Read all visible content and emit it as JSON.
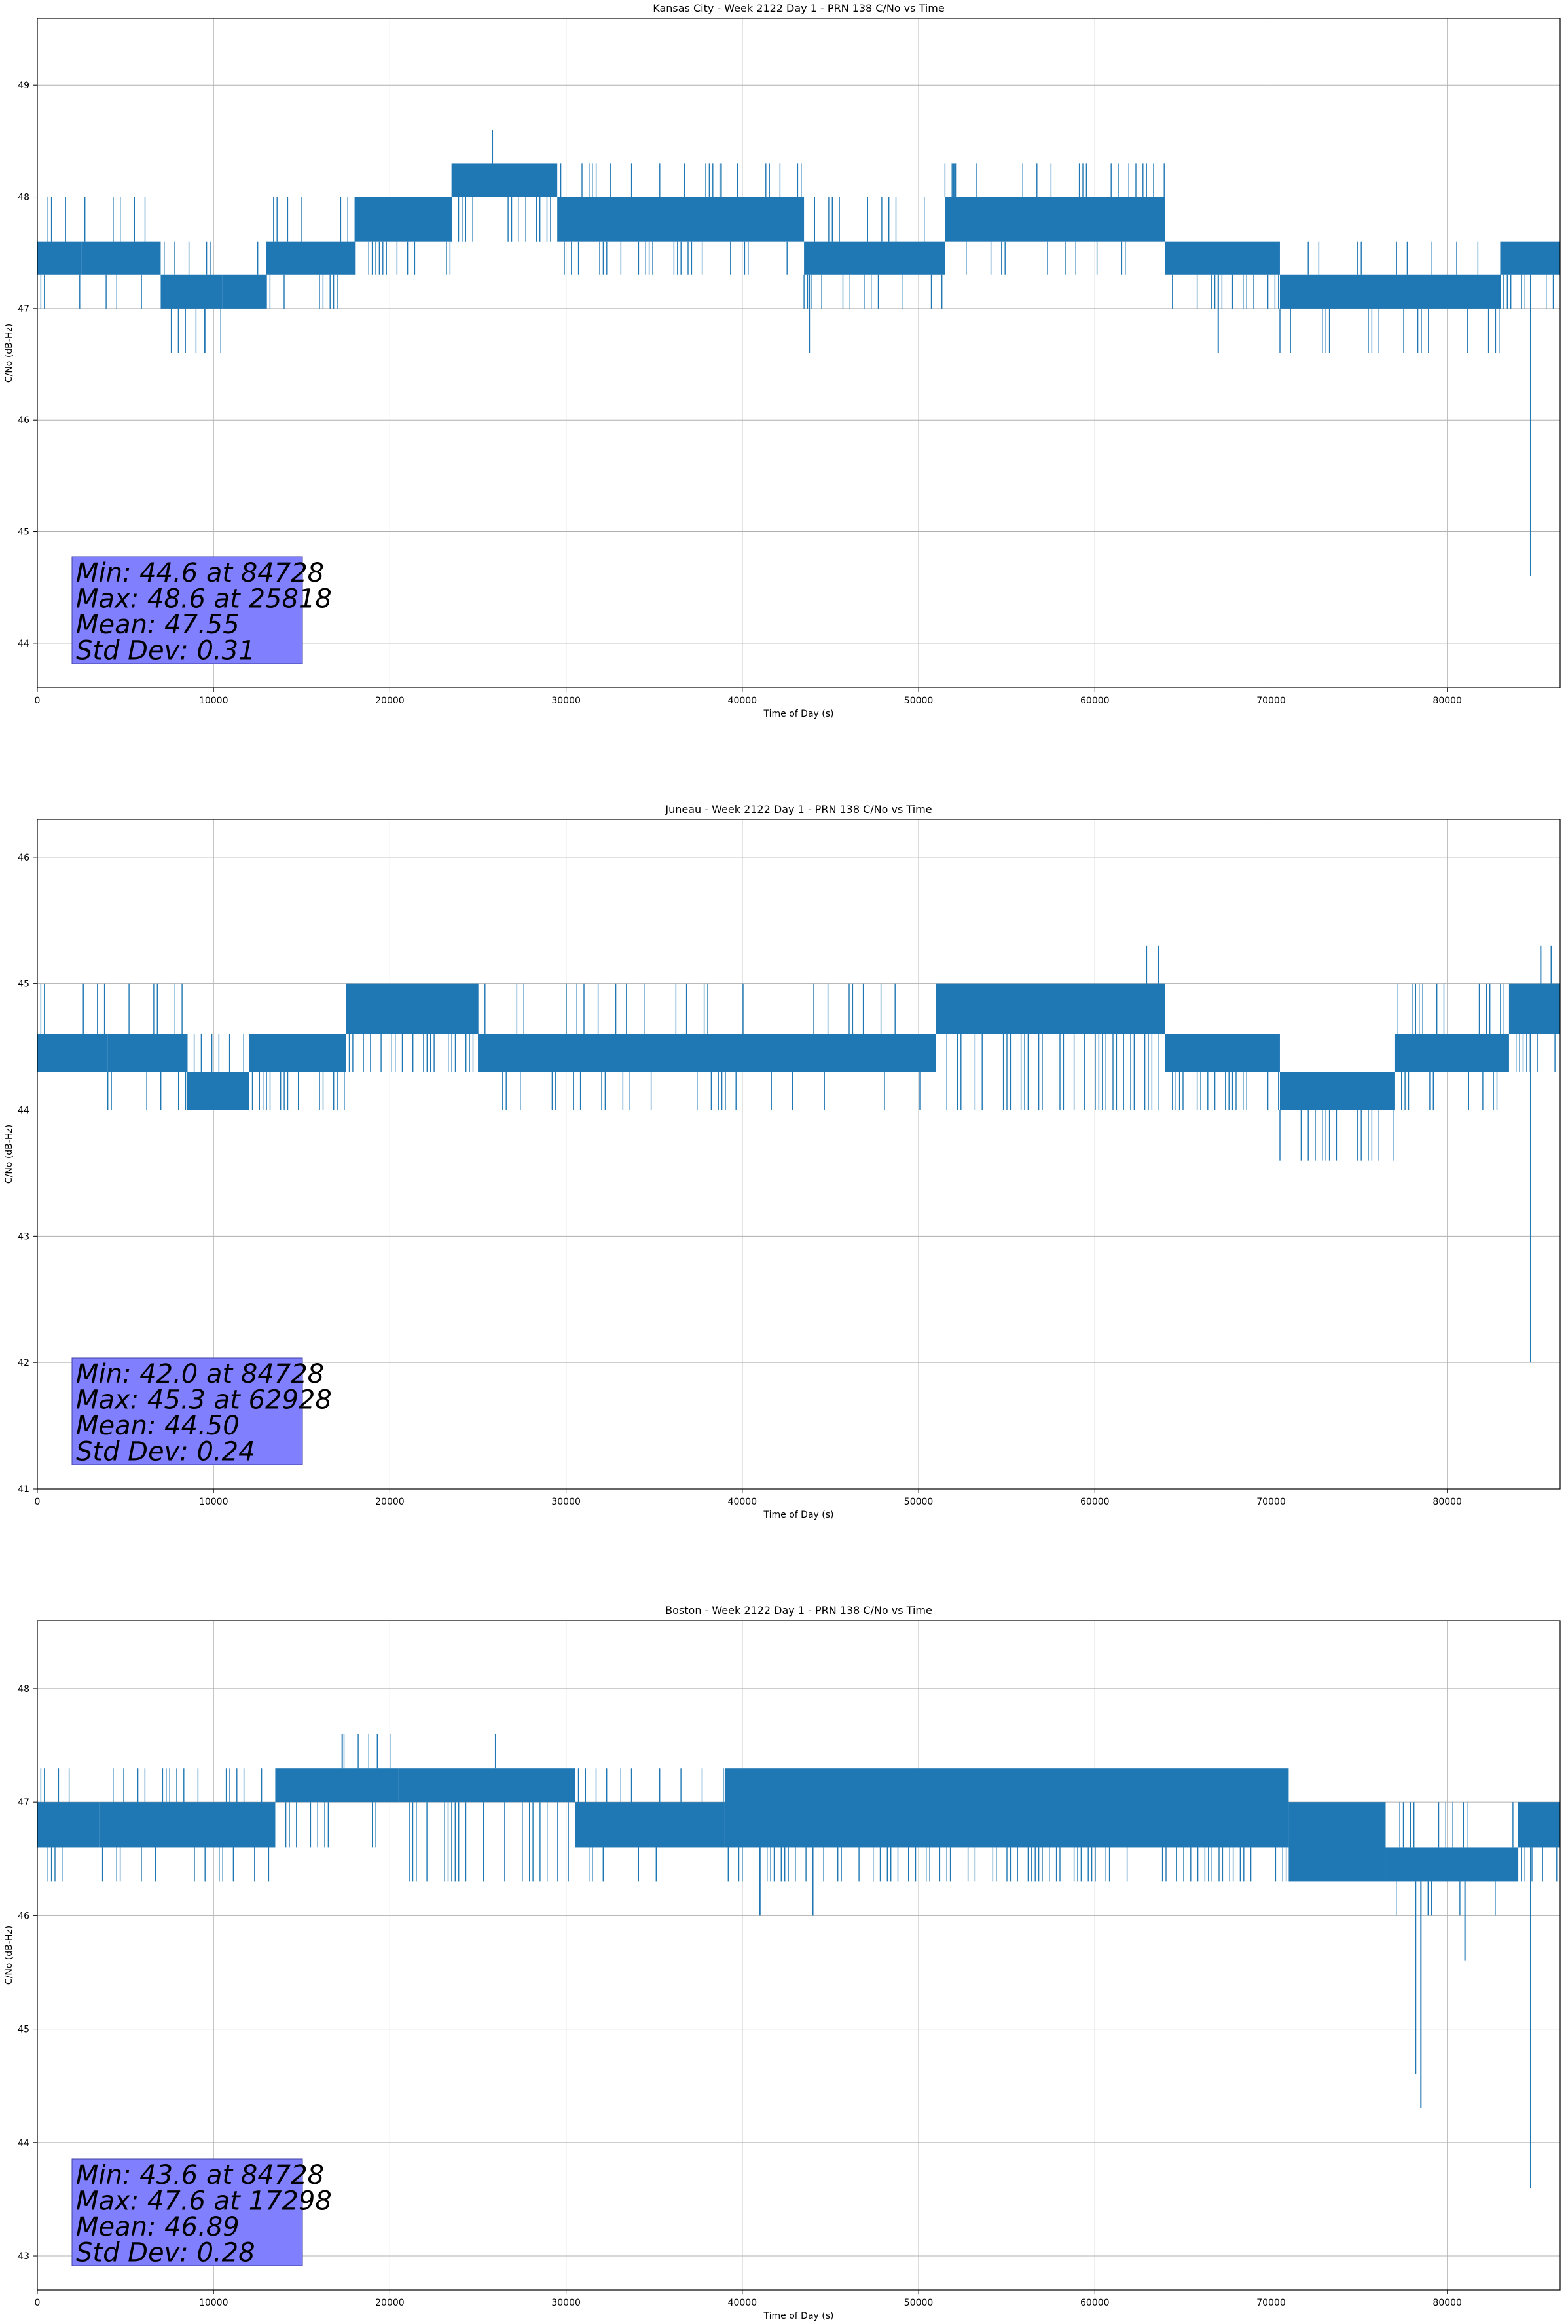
{
  "chart_data": [
    {
      "type": "line",
      "title": "Kansas City - Week 2122 Day 1 - PRN 138 C/No vs Time",
      "xlabel": "Time of Day (s)",
      "ylabel": "C/No (dB-Hz)",
      "xlim": [
        0,
        86400
      ],
      "ylim": [
        43.6,
        49.6
      ],
      "xticks": [
        0,
        10000,
        20000,
        30000,
        40000,
        50000,
        60000,
        70000,
        80000
      ],
      "yticks": [
        44,
        45,
        46,
        47,
        48,
        49
      ],
      "grid": true,
      "color": "#1f77b4",
      "stats": [
        "Min: 44.6 at 84728",
        "Max: 48.6 at 25818",
        "Mean: 47.55",
        "Std Dev: 0.31"
      ],
      "bands": [
        {
          "x": [
            0,
            2500
          ],
          "y": [
            47.3,
            47.6
          ],
          "flick": [
            47.0,
            48.0
          ]
        },
        {
          "x": [
            2500,
            7000
          ],
          "y": [
            47.3,
            47.6
          ],
          "flick": [
            47.0,
            48.0
          ]
        },
        {
          "x": [
            7000,
            10500
          ],
          "y": [
            47.0,
            47.3
          ],
          "flick": [
            46.6,
            47.6
          ]
        },
        {
          "x": [
            10500,
            13000
          ],
          "y": [
            47.0,
            47.3
          ],
          "flick": [
            47.0,
            47.6
          ]
        },
        {
          "x": [
            13000,
            18000
          ],
          "y": [
            47.3,
            47.6
          ],
          "flick": [
            47.0,
            48.0
          ]
        },
        {
          "x": [
            18000,
            23500
          ],
          "y": [
            47.6,
            48.0
          ],
          "flick": [
            47.3,
            48.0
          ]
        },
        {
          "x": [
            23500,
            29500
          ],
          "y": [
            48.0,
            48.3
          ],
          "flick": [
            47.6,
            48.3
          ]
        },
        {
          "x": [
            29500,
            43500
          ],
          "y": [
            47.6,
            48.0
          ],
          "flick": [
            47.3,
            48.3
          ]
        },
        {
          "x": [
            43500,
            51500
          ],
          "y": [
            47.3,
            47.6
          ],
          "flick": [
            47.0,
            48.0
          ]
        },
        {
          "x": [
            51500,
            64000
          ],
          "y": [
            47.6,
            48.0
          ],
          "flick": [
            47.3,
            48.3
          ]
        },
        {
          "x": [
            64000,
            70500
          ],
          "y": [
            47.3,
            47.6
          ],
          "flick": [
            47.0,
            47.6
          ]
        },
        {
          "x": [
            70500,
            83000
          ],
          "y": [
            47.0,
            47.3
          ],
          "flick": [
            46.6,
            47.6
          ]
        },
        {
          "x": [
            83000,
            86400
          ],
          "y": [
            47.3,
            47.6
          ],
          "flick": [
            47.0,
            47.6
          ]
        }
      ],
      "spikes": [
        {
          "x": 9500,
          "y": 46.6
        },
        {
          "x": 25818,
          "y": 48.6
        },
        {
          "x": 38800,
          "y": 48.3
        },
        {
          "x": 43800,
          "y": 46.6
        },
        {
          "x": 52000,
          "y": 48.3
        },
        {
          "x": 67000,
          "y": 46.6
        },
        {
          "x": 84728,
          "y": 44.6
        }
      ]
    },
    {
      "type": "line",
      "title": "Juneau - Week 2122 Day 1 - PRN 138 C/No vs Time",
      "xlabel": "Time of Day (s)",
      "ylabel": "C/No (dB-Hz)",
      "xlim": [
        0,
        86400
      ],
      "ylim": [
        41.0,
        46.3
      ],
      "xticks": [
        0,
        10000,
        20000,
        30000,
        40000,
        50000,
        60000,
        70000,
        80000
      ],
      "yticks": [
        41,
        42,
        43,
        44,
        45,
        46
      ],
      "grid": true,
      "color": "#1f77b4",
      "stats": [
        "Min: 42.0 at 84728",
        "Max: 45.3 at 62928",
        "Mean: 44.50",
        "Std Dev: 0.24"
      ],
      "bands": [
        {
          "x": [
            0,
            4000
          ],
          "y": [
            44.3,
            44.6
          ],
          "flick": [
            44.3,
            45.0
          ]
        },
        {
          "x": [
            4000,
            8500
          ],
          "y": [
            44.3,
            44.6
          ],
          "flick": [
            44.0,
            45.0
          ]
        },
        {
          "x": [
            8500,
            12000
          ],
          "y": [
            44.0,
            44.3
          ],
          "flick": [
            44.0,
            44.6
          ]
        },
        {
          "x": [
            12000,
            17500
          ],
          "y": [
            44.3,
            44.6
          ],
          "flick": [
            44.0,
            44.6
          ]
        },
        {
          "x": [
            17500,
            25000
          ],
          "y": [
            44.6,
            45.0
          ],
          "flick": [
            44.3,
            45.0
          ]
        },
        {
          "x": [
            25000,
            51000
          ],
          "y": [
            44.3,
            44.6
          ],
          "flick": [
            44.0,
            45.0
          ]
        },
        {
          "x": [
            51000,
            64000
          ],
          "y": [
            44.6,
            45.0
          ],
          "flick": [
            44.0,
            45.0
          ]
        },
        {
          "x": [
            64000,
            70500
          ],
          "y": [
            44.3,
            44.6
          ],
          "flick": [
            44.0,
            44.6
          ]
        },
        {
          "x": [
            70500,
            77000
          ],
          "y": [
            44.0,
            44.3
          ],
          "flick": [
            43.6,
            44.3
          ]
        },
        {
          "x": [
            77000,
            83500
          ],
          "y": [
            44.3,
            44.6
          ],
          "flick": [
            44.0,
            45.0
          ]
        },
        {
          "x": [
            83500,
            86400
          ],
          "y": [
            44.6,
            45.0
          ],
          "flick": [
            44.3,
            45.0
          ]
        }
      ],
      "spikes": [
        {
          "x": 62928,
          "y": 45.3
        },
        {
          "x": 63600,
          "y": 45.3
        },
        {
          "x": 85300,
          "y": 45.3
        },
        {
          "x": 85900,
          "y": 45.3
        },
        {
          "x": 84728,
          "y": 42.0
        }
      ]
    },
    {
      "type": "line",
      "title": "Boston - Week 2122 Day 1 - PRN 138 C/No vs Time",
      "xlabel": "Time of Day (s)",
      "ylabel": "C/No (dB-Hz)",
      "xlim": [
        0,
        86400
      ],
      "ylim": [
        42.7,
        48.6
      ],
      "xticks": [
        0,
        10000,
        20000,
        30000,
        40000,
        50000,
        60000,
        70000,
        80000
      ],
      "yticks": [
        43,
        44,
        45,
        46,
        47,
        48
      ],
      "grid": true,
      "color": "#1f77b4",
      "stats": [
        "Min: 43.6 at 84728",
        "Max: 47.6 at 17298",
        "Mean: 46.89",
        "Std Dev: 0.28"
      ],
      "bands": [
        {
          "x": [
            0,
            3500
          ],
          "y": [
            46.6,
            47.0
          ],
          "flick": [
            46.3,
            47.3
          ]
        },
        {
          "x": [
            3500,
            13500
          ],
          "y": [
            46.6,
            47.0
          ],
          "flick": [
            46.3,
            47.3
          ]
        },
        {
          "x": [
            13500,
            17000
          ],
          "y": [
            47.0,
            47.3
          ],
          "flick": [
            46.6,
            47.3
          ]
        },
        {
          "x": [
            17000,
            20500
          ],
          "y": [
            47.0,
            47.3
          ],
          "flick": [
            46.6,
            47.6
          ]
        },
        {
          "x": [
            20500,
            30500
          ],
          "y": [
            47.0,
            47.3
          ],
          "flick": [
            46.3,
            47.3
          ]
        },
        {
          "x": [
            30500,
            39000
          ],
          "y": [
            46.6,
            47.0
          ],
          "flick": [
            46.3,
            47.3
          ]
        },
        {
          "x": [
            39000,
            51000
          ],
          "y": [
            46.6,
            47.3
          ],
          "flick": [
            46.3,
            47.3
          ]
        },
        {
          "x": [
            51000,
            71000
          ],
          "y": [
            46.6,
            47.3
          ],
          "flick": [
            46.3,
            47.3
          ]
        },
        {
          "x": [
            71000,
            76500
          ],
          "y": [
            46.3,
            47.0
          ],
          "flick": [
            46.3,
            47.0
          ]
        },
        {
          "x": [
            76500,
            84000
          ],
          "y": [
            46.3,
            46.6
          ],
          "flick": [
            46.0,
            47.0
          ]
        },
        {
          "x": [
            84000,
            86400
          ],
          "y": [
            46.6,
            47.0
          ],
          "flick": [
            46.3,
            47.0
          ]
        }
      ],
      "spikes": [
        {
          "x": 17298,
          "y": 47.6
        },
        {
          "x": 19300,
          "y": 47.6
        },
        {
          "x": 26000,
          "y": 47.6
        },
        {
          "x": 41000,
          "y": 46.0
        },
        {
          "x": 44000,
          "y": 46.0
        },
        {
          "x": 78200,
          "y": 44.6
        },
        {
          "x": 78500,
          "y": 44.3
        },
        {
          "x": 81000,
          "y": 45.6
        },
        {
          "x": 84728,
          "y": 43.6
        }
      ]
    }
  ]
}
